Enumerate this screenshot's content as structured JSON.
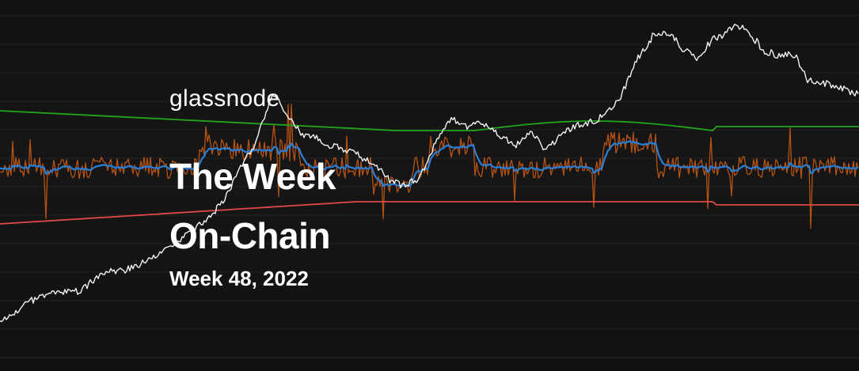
{
  "brand": "glassnode",
  "title_line1": "The Week",
  "title_line2": "On-Chain",
  "subtitle": "Week 48, 2022",
  "colors": {
    "background": "#121213",
    "price_line": "#f2f2f2",
    "oscillator_raw": "#c85a12",
    "oscillator_smooth": "#2a7fd4",
    "upper_band": "#22a51c",
    "lower_band": "#e04848",
    "text": "#ffffff"
  }
}
